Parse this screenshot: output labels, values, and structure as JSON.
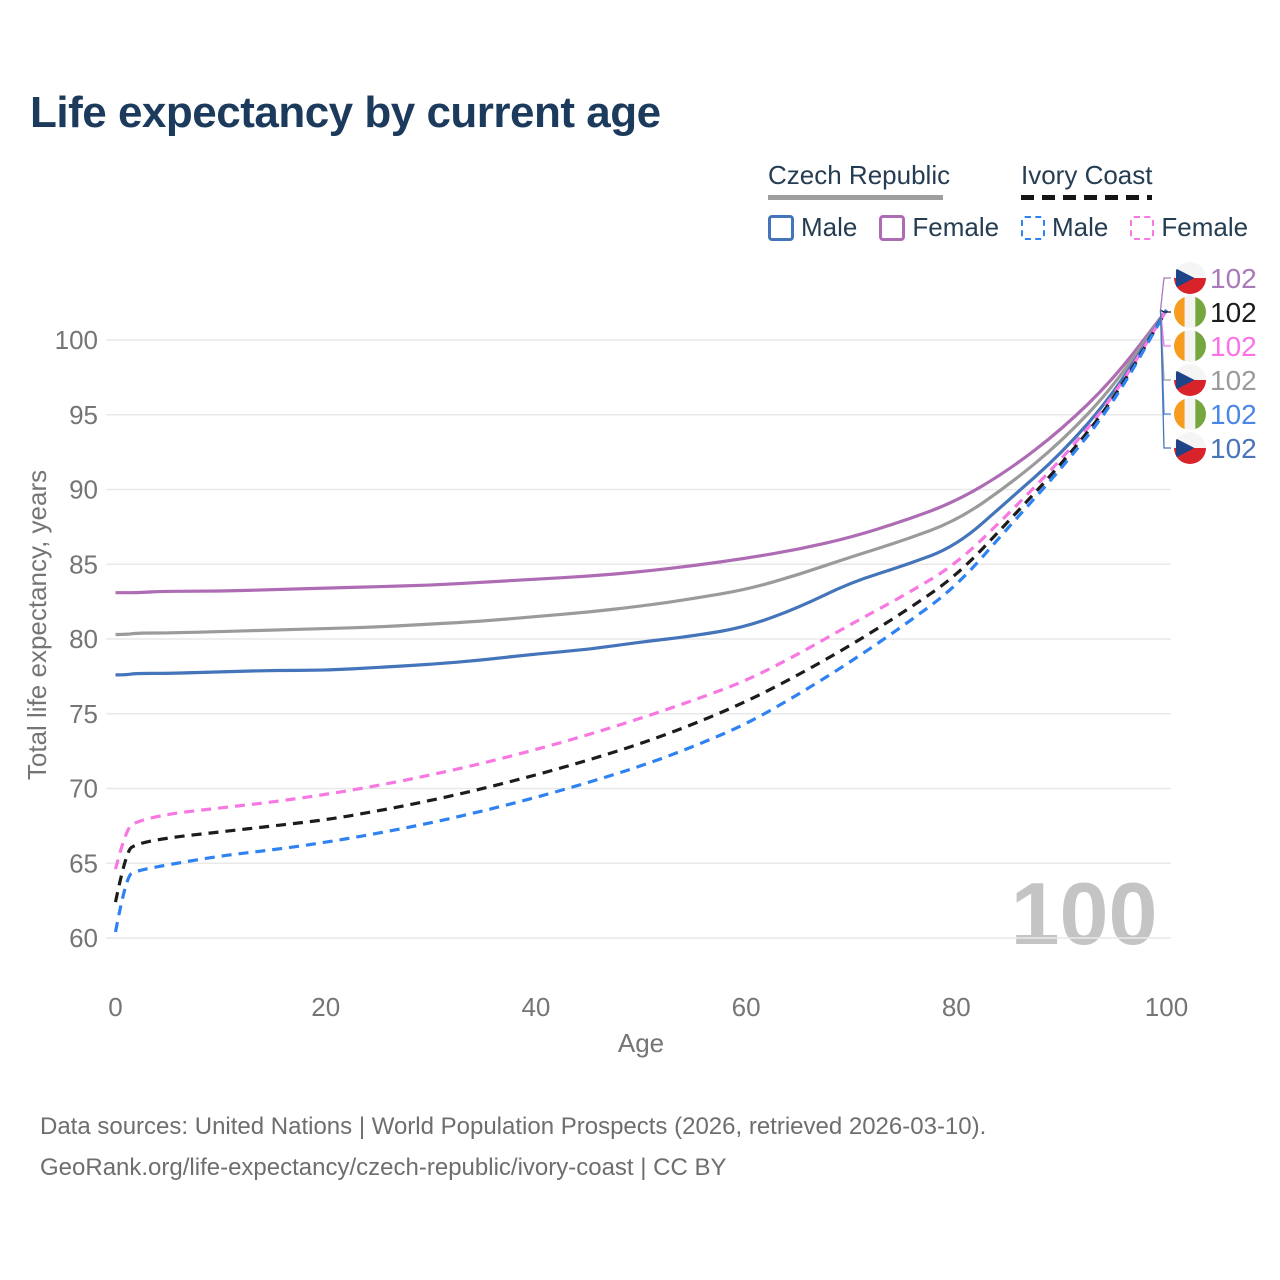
{
  "title": "Life expectancy by current age",
  "legend": {
    "groups": [
      {
        "label": "Czech Republic",
        "line_style": "solid",
        "items": [
          {
            "label": "Male",
            "color": "#4474b9"
          },
          {
            "label": "Female",
            "color": "#ad6cb3"
          }
        ]
      },
      {
        "label": "Ivory Coast",
        "line_style": "dashed",
        "items": [
          {
            "label": "Male",
            "color": "#2f82f2"
          },
          {
            "label": "Female",
            "color": "#f878e2"
          }
        ]
      }
    ]
  },
  "chart_data": {
    "type": "line",
    "title": "Life expectancy by current age",
    "xlabel": "Age",
    "ylabel": "Total life expectancy, years",
    "xlim": [
      0,
      100
    ],
    "ylim": [
      60,
      102.5
    ],
    "xticks": [
      0,
      20,
      40,
      60,
      80,
      100
    ],
    "yticks": [
      60,
      65,
      70,
      75,
      80,
      85,
      90,
      95,
      100
    ],
    "grid": "horizontal",
    "legend_position": "top-right",
    "x": [
      0,
      1,
      2,
      5,
      10,
      15,
      20,
      25,
      30,
      35,
      40,
      45,
      50,
      55,
      60,
      65,
      70,
      75,
      80,
      85,
      90,
      95,
      100
    ],
    "series": [
      {
        "name": "Czech Republic Female",
        "country": "Czech Republic",
        "group": "Female",
        "color": "#ad6cb3",
        "dash": "solid",
        "values": [
          83.1,
          83.1,
          83.1,
          83.2,
          83.2,
          83.3,
          83.4,
          83.5,
          83.6,
          83.8,
          84.0,
          84.2,
          84.5,
          84.9,
          85.4,
          86.0,
          86.8,
          87.9,
          89.2,
          91.3,
          94.0,
          97.4,
          102.0
        ]
      },
      {
        "name": "Czech Republic Both sexes",
        "country": "Czech Republic",
        "group": "Both sexes",
        "color": "#9b9b9b",
        "dash": "solid",
        "values": [
          80.3,
          80.3,
          80.4,
          80.4,
          80.5,
          80.6,
          80.7,
          80.8,
          81.0,
          81.2,
          81.5,
          81.8,
          82.2,
          82.7,
          83.3,
          84.3,
          85.5,
          86.6,
          87.9,
          90.3,
          93.2,
          96.9,
          102.0
        ]
      },
      {
        "name": "Czech Republic Male",
        "country": "Czech Republic",
        "group": "Male",
        "color": "#4474b9",
        "dash": "solid",
        "values": [
          77.6,
          77.6,
          77.7,
          77.7,
          77.8,
          77.9,
          77.9,
          78.1,
          78.3,
          78.6,
          79.0,
          79.3,
          79.8,
          80.2,
          80.8,
          82.1,
          83.8,
          84.9,
          86.2,
          89.3,
          92.4,
          96.4,
          102.0
        ]
      },
      {
        "name": "Ivory Coast Female",
        "country": "Ivory Coast",
        "group": "Female",
        "color": "#f878e2",
        "dash": "dashed",
        "values": [
          64.6,
          67.3,
          67.8,
          68.3,
          68.7,
          69.1,
          69.6,
          70.2,
          70.9,
          71.7,
          72.6,
          73.6,
          74.7,
          75.9,
          77.2,
          79.0,
          81.0,
          82.9,
          85.0,
          88.4,
          92.0,
          96.2,
          102.0
        ]
      },
      {
        "name": "Ivory Coast Both sexes",
        "country": "Ivory Coast",
        "group": "Both sexes",
        "color": "#1c1c1c",
        "dash": "dashed",
        "values": [
          62.4,
          65.8,
          66.3,
          66.7,
          67.1,
          67.5,
          67.9,
          68.5,
          69.2,
          70.0,
          70.9,
          71.9,
          73.0,
          74.3,
          75.8,
          77.6,
          79.6,
          81.8,
          84.2,
          87.9,
          91.7,
          96.0,
          102.0
        ]
      },
      {
        "name": "Ivory Coast Male",
        "country": "Ivory Coast",
        "group": "Male",
        "color": "#2f82f2",
        "dash": "dashed",
        "values": [
          60.4,
          64.1,
          64.5,
          64.9,
          65.5,
          65.9,
          66.4,
          67.0,
          67.7,
          68.5,
          69.4,
          70.4,
          71.5,
          72.8,
          74.3,
          76.3,
          78.5,
          80.9,
          83.5,
          87.5,
          91.4,
          95.8,
          102.0
        ]
      }
    ],
    "end_labels": [
      {
        "series": "Czech Republic Female",
        "flag": "cz",
        "value": "102",
        "color": "#a97ab9"
      },
      {
        "series": "Ivory Coast Both sexes",
        "flag": "ci",
        "value": "102",
        "color": "#1c1c1c"
      },
      {
        "series": "Ivory Coast Female",
        "flag": "ci",
        "value": "102",
        "color": "#fb71e8"
      },
      {
        "series": "Czech Republic Both sexes",
        "flag": "cz",
        "value": "102",
        "color": "#9b9b9b"
      },
      {
        "series": "Ivory Coast Male",
        "flag": "ci",
        "value": "102",
        "color": "#4a86e8"
      },
      {
        "series": "Czech Republic Male",
        "flag": "cz",
        "value": "102",
        "color": "#4a74b8"
      }
    ],
    "hover_age_watermark": "100"
  },
  "footer": {
    "line1": "Data sources: United Nations | World Population Prospects (2026, retrieved 2026-03-10).",
    "line2": "GeoRank.org/life-expectancy/czech-republic/ivory-coast | CC BY"
  },
  "flag_colors": {
    "cz": {
      "white": "#f5f5f5",
      "red": "#d8232a",
      "blue": "#1e4386"
    },
    "ci": {
      "orange": "#f59b1e",
      "white": "#f4f4f4",
      "green": "#76a73e"
    }
  }
}
